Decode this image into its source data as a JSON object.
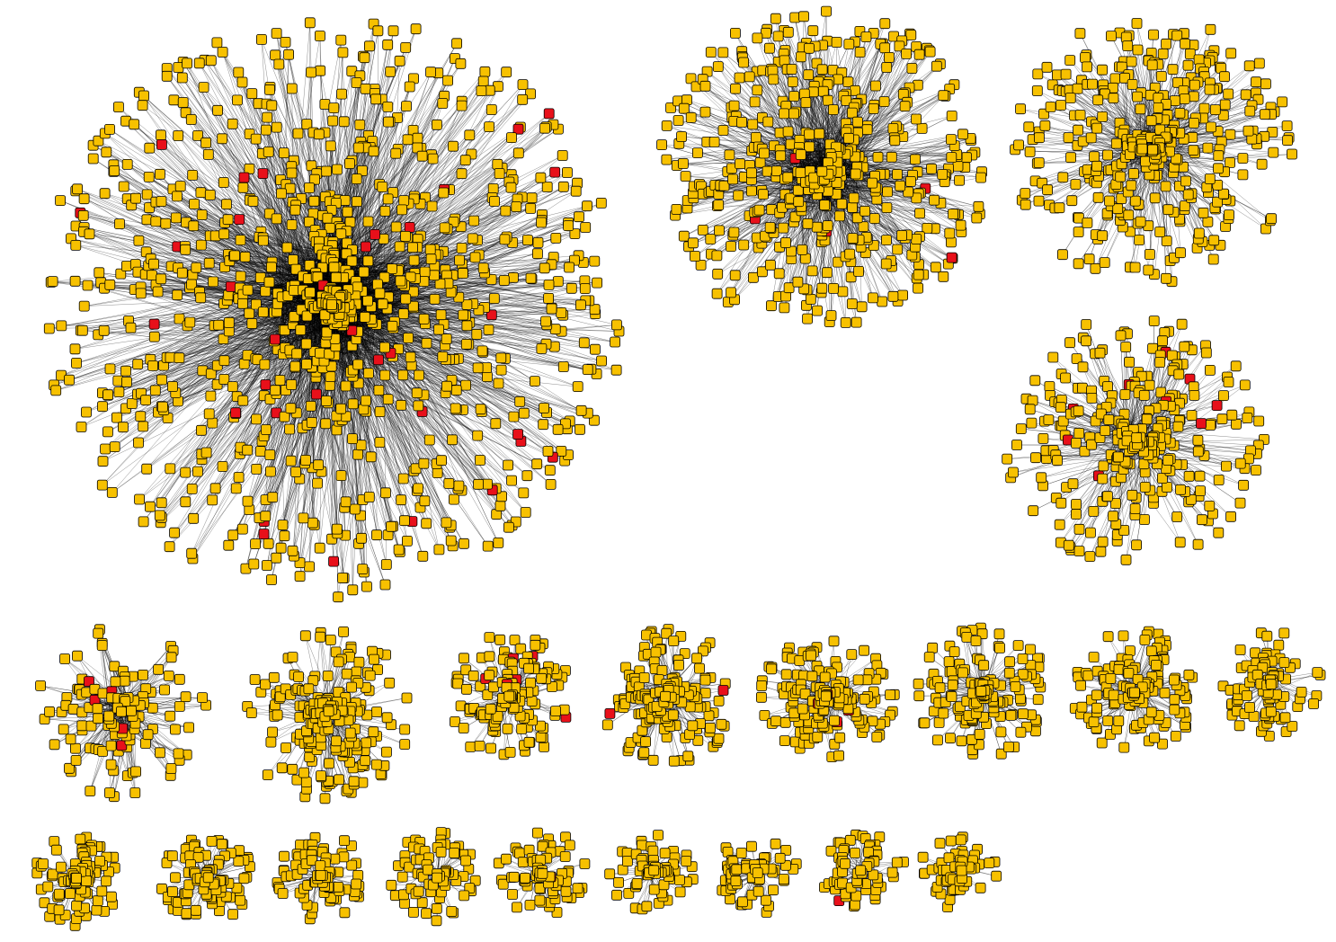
{
  "node_color": "#f7c100",
  "highlight_color": "#e8101a",
  "node_outline": "#000000",
  "edge_color": "#000000"
}
